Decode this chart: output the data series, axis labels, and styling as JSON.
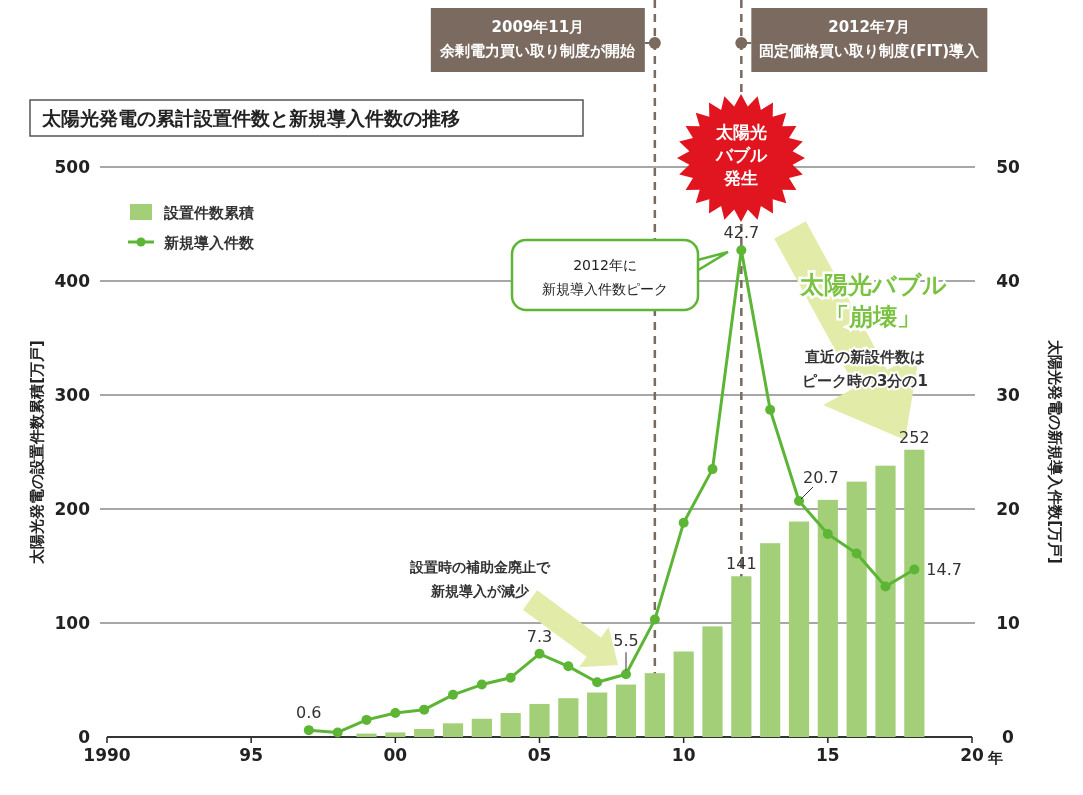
{
  "chart_data": {
    "type": "bar",
    "title": "太陽光発電の累計設置件数と新規導入件数の推移",
    "ylabel": "太陽光発電の設置件数累積[万戸]",
    "y2label": "太陽光発電の新規導入件数[万戸]",
    "series": [
      {
        "name": "設置件数累積",
        "color": "#a3cf78",
        "x": [
          1999,
          2000,
          2001,
          2002,
          2003,
          2004,
          2005,
          2006,
          2007,
          2008,
          2009,
          2010,
          2011,
          2012,
          2013,
          2014,
          2015,
          2016,
          2017,
          2018
        ],
        "values": [
          3,
          4,
          7,
          12,
          16,
          21,
          29,
          34,
          39,
          46,
          56,
          75,
          97,
          141,
          170,
          189,
          208,
          224,
          238,
          252
        ],
        "value_labels": [
          null,
          null,
          null,
          null,
          null,
          null,
          null,
          null,
          null,
          null,
          null,
          null,
          null,
          "141",
          null,
          null,
          null,
          null,
          null,
          "252"
        ]
      },
      {
        "name": "新規導入件数",
        "type": "line",
        "axis": "y2",
        "color": "#5db535",
        "marker": "circle",
        "line_style": "solid",
        "x": [
          1997,
          1998,
          1999,
          2000,
          2001,
          2002,
          2003,
          2004,
          2005,
          2006,
          2007,
          2008,
          2009,
          2010,
          2011,
          2012,
          2013,
          2014,
          2015,
          2016,
          2017,
          2018
        ],
        "values": [
          0.6,
          0.4,
          1.5,
          2.1,
          2.4,
          3.7,
          4.6,
          5.2,
          7.3,
          6.2,
          4.8,
          5.5,
          10.3,
          18.8,
          23.5,
          42.7,
          28.7,
          20.7,
          17.8,
          16.1,
          13.2,
          14.7
        ],
        "value_labels": [
          "0.6",
          null,
          null,
          null,
          null,
          null,
          null,
          null,
          "7.3",
          null,
          null,
          "5.5",
          null,
          null,
          null,
          "42.7",
          null,
          "20.7",
          null,
          null,
          null,
          "14.7"
        ]
      }
    ],
    "xlim": [
      1990,
      2020
    ],
    "xticks": [
      {
        "value": 1990,
        "label": "1990"
      },
      {
        "value": 1995,
        "label": "95"
      },
      {
        "value": 2000,
        "label": "00"
      },
      {
        "value": 2005,
        "label": "05"
      },
      {
        "value": 2010,
        "label": "10"
      },
      {
        "value": 2015,
        "label": "15"
      },
      {
        "value": 2020,
        "label": "20"
      }
    ],
    "xlabel": "年",
    "ylim": [
      0,
      500
    ],
    "yticks": [
      0,
      100,
      200,
      300,
      400,
      500
    ],
    "y2lim": [
      0,
      50
    ],
    "y2ticks": [
      0,
      10,
      20,
      30,
      40,
      50
    ],
    "grid": "y",
    "legend": "top left",
    "ref_lines": [
      {
        "axis": "x",
        "value": 2009,
        "label": "2009年11月余剰電力買い取り制度が開始",
        "color": "#7a6a60",
        "line_style": "dashed"
      },
      {
        "axis": "x",
        "value": 2012,
        "label": "2012年7月固定価格買い取り制度(FIT)導入",
        "color": "#7a6a60",
        "line_style": "dashed"
      }
    ],
    "annotations": [
      "太陽光バブル発生",
      "2012年に新規導入件数ピーク",
      "太陽光バブル「崩壊」",
      "直近の新設件数はピーク時の3分の1",
      "設置時の補助金廃止で新規導入が減少"
    ]
  }
}
